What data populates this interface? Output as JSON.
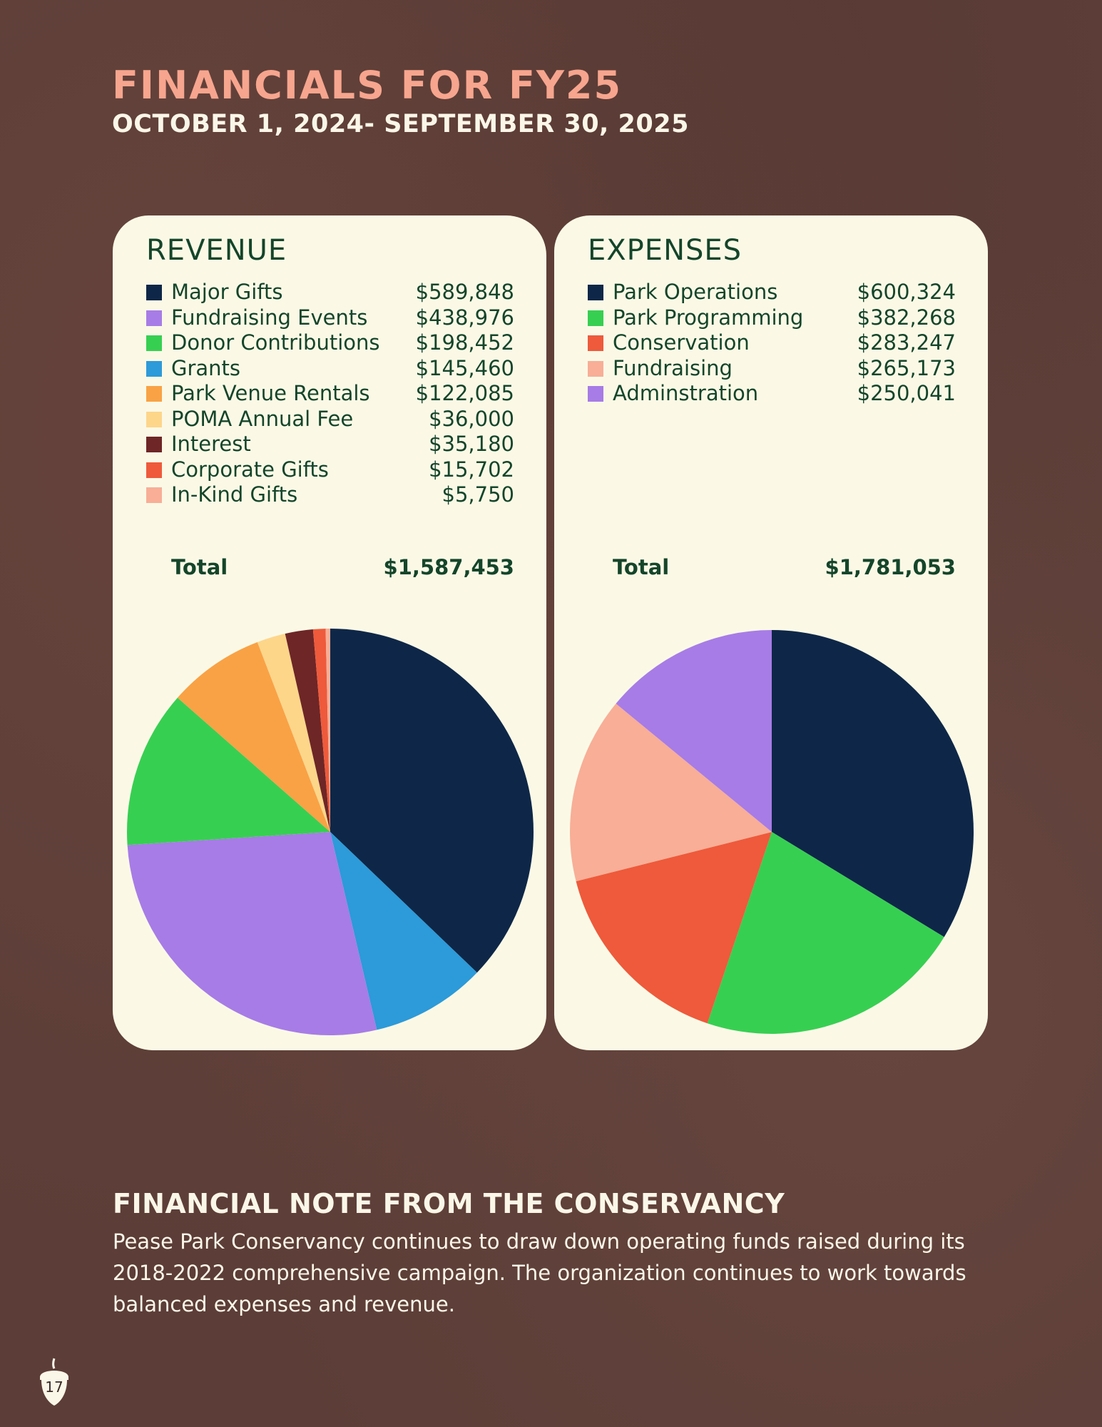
{
  "header": {
    "title": "FINANCIALS FOR FY25",
    "subtitle": "OCTOBER 1, 2024- SEPTEMBER 30, 2025"
  },
  "revenue": {
    "total_label": "Total",
    "total_value": "$1,587,453"
  },
  "expenses": {
    "total_label": "Total",
    "total_value": "$1,781,053"
  },
  "chart_data": [
    {
      "type": "pie",
      "title": "REVENUE",
      "categories": [
        "Major Gifts",
        "Fundraising Events",
        "Donor Contributions",
        "Grants",
        "Park Venue Rentals",
        "POMA Annual Fee",
        "Interest",
        "Corporate Gifts",
        "In-Kind Gifts"
      ],
      "values": [
        589848,
        438976,
        198452,
        145460,
        122085,
        36000,
        35180,
        15702,
        5750
      ],
      "value_labels": [
        "$589,848",
        "$438,976",
        "$198,452",
        "$145,460",
        "$122,085",
        "$36,000",
        "$35,180",
        "$15,702",
        "$5,750"
      ],
      "colors": [
        "#0e2748",
        "#a77ce6",
        "#37cf52",
        "#2d9ad9",
        "#f9a245",
        "#fdd68a",
        "#6e2626",
        "#ee5a3b",
        "#f8ae97"
      ],
      "slice_order": [
        "Major Gifts",
        "Grants",
        "Fundraising Events",
        "Donor Contributions",
        "Park Venue Rentals",
        "POMA Annual Fee",
        "Interest",
        "Corporate Gifts",
        "In-Kind Gifts"
      ],
      "start_angle": "12 o'clock",
      "direction": "clockwise",
      "legend_position": "top"
    },
    {
      "type": "pie",
      "title": "EXPENSES",
      "categories": [
        "Park Operations",
        "Park Programming",
        "Conservation",
        "Fundraising",
        "Adminstration"
      ],
      "values": [
        600324,
        382268,
        283247,
        265173,
        250041
      ],
      "value_labels": [
        "$600,324",
        "$382,268",
        "$283,247",
        "$265,173",
        "$250,041"
      ],
      "colors": [
        "#0e2748",
        "#37cf52",
        "#ee5a3b",
        "#f8ae97",
        "#a77ce6"
      ],
      "slice_order": [
        "Park Operations",
        "Park Programming",
        "Conservation",
        "Fundraising",
        "Adminstration"
      ],
      "start_angle": "12 o'clock",
      "direction": "clockwise",
      "legend_position": "top"
    }
  ],
  "note": {
    "heading": "FINANCIAL NOTE FROM THE CONSERVANCY",
    "body": "Pease Park Conservancy continues to draw down operating funds raised during its 2018-2022 comprehensive campaign. The organization continues to work towards balanced expenses and revenue."
  },
  "footer": {
    "page_number": "17",
    "icon": "acorn-icon"
  }
}
